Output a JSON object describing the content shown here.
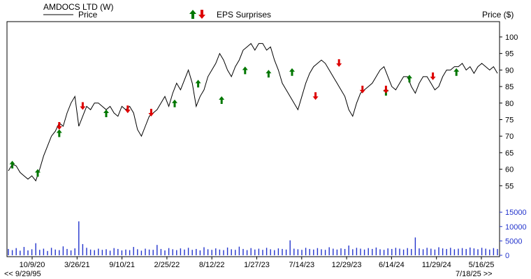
{
  "header": {
    "title": "AMDOCS LTD (W)",
    "price_legend": "Price",
    "eps_legend": "EPS Surprises",
    "price_axis_label": "Price ($)"
  },
  "footer": {
    "start_date": "<< 9/29/95",
    "end_date": "7/18/25 >>"
  },
  "colors": {
    "price_line": "#000000",
    "volume_bars": "#2233cc",
    "eps_positive": "#007700",
    "eps_negative": "#dd0000",
    "frame": "#000000"
  },
  "chart_data": {
    "type": "line",
    "title": "AMDOCS LTD (W)",
    "ylabel": "Price ($)",
    "ylim": [
      50,
      104
    ],
    "y_ticks": [
      55,
      60,
      65,
      70,
      75,
      80,
      85,
      90,
      95,
      100
    ],
    "x_tick_labels": [
      "10/9/20",
      "3/26/21",
      "9/10/21",
      "2/25/22",
      "8/12/22",
      "1/27/23",
      "7/14/23",
      "12/29/23",
      "6/14/24",
      "11/29/24",
      "5/16/25"
    ],
    "x_range_weeks": [
      0,
      250
    ],
    "series": [
      {
        "name": "Price",
        "x_week": [
          0,
          2,
          4,
          6,
          8,
          10,
          12,
          14,
          16,
          18,
          20,
          22,
          24,
          26,
          28,
          30,
          32,
          34,
          36,
          38,
          40,
          42,
          44,
          46,
          48,
          50,
          52,
          54,
          56,
          58,
          60,
          62,
          64,
          66,
          68,
          70,
          72,
          74,
          76,
          78,
          80,
          82,
          84,
          86,
          88,
          90,
          92,
          94,
          96,
          98,
          100,
          102,
          104,
          106,
          108,
          110,
          112,
          114,
          116,
          118,
          120,
          122,
          124,
          126,
          128,
          130,
          132,
          134,
          136,
          138,
          140,
          142,
          144,
          146,
          148,
          150,
          152,
          154,
          156,
          158,
          160,
          162,
          164,
          166,
          168,
          170,
          172,
          174,
          176,
          178,
          180,
          182,
          184,
          186,
          188,
          190,
          192,
          194,
          196,
          198,
          200,
          202,
          204,
          206,
          208,
          210,
          212,
          214,
          216,
          218,
          220,
          222,
          224,
          226,
          228,
          230,
          232,
          234,
          236,
          238,
          240,
          242,
          244,
          246,
          248,
          250
        ],
        "y": [
          59.5,
          61.5,
          61,
          59,
          58,
          57,
          58,
          56.5,
          60,
          64,
          67,
          70,
          71.5,
          74,
          73,
          77,
          80,
          82,
          73,
          76,
          79,
          78,
          80,
          80,
          79,
          78,
          79,
          77,
          76,
          79,
          78,
          79,
          77,
          72,
          70,
          73,
          76,
          77,
          78,
          80,
          82,
          79,
          83,
          86,
          84,
          87,
          90,
          86,
          79,
          82,
          84,
          88,
          90,
          92,
          95,
          93,
          90,
          88,
          91,
          93,
          96,
          97,
          98,
          96,
          98,
          98,
          96,
          97,
          93,
          90,
          86,
          84,
          82,
          80,
          78,
          82,
          86,
          89,
          91,
          92,
          93,
          92,
          90,
          88,
          86,
          84,
          82,
          78,
          76,
          80,
          83,
          84,
          85,
          86,
          88,
          90,
          91,
          88,
          85,
          84,
          86,
          88,
          88,
          85,
          83,
          86,
          88,
          88,
          86,
          84,
          85,
          88,
          90,
          90,
          91,
          91,
          92,
          90,
          91,
          89,
          91,
          92,
          91,
          90,
          91,
          89
        ]
      },
      {
        "name": "Volume",
        "axis_ticks": [
          0,
          5000,
          10000,
          15000
        ],
        "values": [
          2200,
          1800,
          2500,
          1600,
          2900,
          1700,
          2100,
          4200,
          1900,
          2300,
          1500,
          2600,
          2000,
          1800,
          3100,
          2200,
          1700,
          2400,
          11800,
          3900,
          2600,
          2000,
          1800,
          2300,
          1900,
          2100,
          1600,
          2500,
          2200,
          1700,
          2000,
          1800,
          2900,
          2100,
          1600,
          2300,
          2000,
          1900,
          3600,
          2200,
          1700,
          2500,
          2100,
          1800,
          2400,
          2000,
          2600,
          1900,
          2200,
          1700,
          2800,
          2100,
          1900,
          2400,
          2000,
          1800,
          2700,
          2100,
          1900,
          3000,
          2200,
          1800,
          2500,
          2000,
          2300,
          1900,
          2600,
          2100,
          1800,
          2400,
          2200,
          2000,
          5200,
          2300,
          2100,
          1900,
          2600,
          2200,
          2000,
          2500,
          2100,
          1900,
          2800,
          2300,
          2000,
          2400,
          2200,
          3400,
          2100,
          2600,
          2300,
          2000,
          2500,
          2200,
          2700,
          2100,
          1900,
          2400,
          2200,
          2600,
          2300,
          2000,
          2500,
          2200,
          6200,
          2400,
          2100,
          2600,
          2300,
          2000,
          2800,
          2400,
          2200,
          2600,
          2100,
          2300,
          2500,
          2200,
          2700,
          2400,
          2100,
          2600,
          2300,
          2000,
          2500,
          2200
        ]
      }
    ],
    "eps_surprises": [
      {
        "x_week": 2,
        "y": 61.5,
        "direction": "up"
      },
      {
        "x_week": 15,
        "y": 59,
        "direction": "up"
      },
      {
        "x_week": 26,
        "y": 71,
        "direction": "up"
      },
      {
        "x_week": 26,
        "y": 73,
        "direction": "down"
      },
      {
        "x_week": 38,
        "y": 79,
        "direction": "down"
      },
      {
        "x_week": 50,
        "y": 77,
        "direction": "up"
      },
      {
        "x_week": 61,
        "y": 78,
        "direction": "down"
      },
      {
        "x_week": 73,
        "y": 77,
        "direction": "down"
      },
      {
        "x_week": 85,
        "y": 80,
        "direction": "up"
      },
      {
        "x_week": 97,
        "y": 86,
        "direction": "up"
      },
      {
        "x_week": 109,
        "y": 81,
        "direction": "up"
      },
      {
        "x_week": 121,
        "y": 90,
        "direction": "up"
      },
      {
        "x_week": 133,
        "y": 89,
        "direction": "up"
      },
      {
        "x_week": 145,
        "y": 89.5,
        "direction": "up"
      },
      {
        "x_week": 157,
        "y": 82,
        "direction": "down"
      },
      {
        "x_week": 169,
        "y": 92,
        "direction": "down"
      },
      {
        "x_week": 181,
        "y": 84,
        "direction": "down"
      },
      {
        "x_week": 193,
        "y": 83.5,
        "direction": "up"
      },
      {
        "x_week": 193,
        "y": 84,
        "direction": "down"
      },
      {
        "x_week": 205,
        "y": 87.5,
        "direction": "up"
      },
      {
        "x_week": 217,
        "y": 88,
        "direction": "down"
      },
      {
        "x_week": 229,
        "y": 89.5,
        "direction": "up"
      }
    ]
  }
}
